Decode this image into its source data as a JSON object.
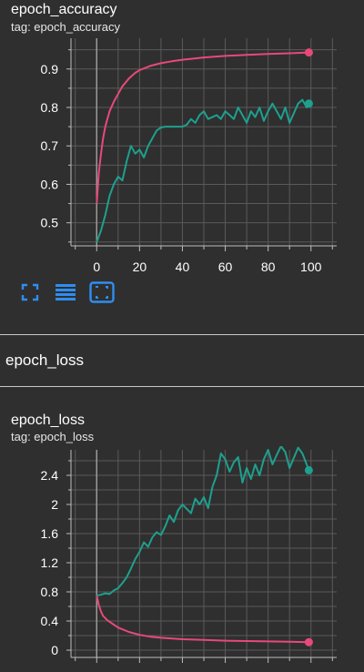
{
  "cards": [
    {
      "title": "epoch_accuracy",
      "tag": "tag: epoch_accuracy"
    },
    {
      "title": "epoch_loss",
      "tag": "tag: epoch_loss"
    }
  ],
  "section": {
    "title": "epoch_loss"
  },
  "toolbar": [
    {
      "icon": "fullscreen-icon"
    },
    {
      "icon": "list-lines-icon"
    },
    {
      "icon": "fit-domain-icon"
    }
  ],
  "colors": {
    "background": "#2f2f2f",
    "grid": "#5a5a5a",
    "axis": "#bdbdbd",
    "series_pink": "#e8497a",
    "series_teal": "#1ea08e",
    "toolbar_icon": "#2e8ef0"
  },
  "chart_data": [
    {
      "type": "line",
      "title": "epoch_accuracy",
      "xlim": [
        -12,
        112
      ],
      "ylim": [
        0.44,
        0.98
      ],
      "xticks": [
        0,
        20,
        40,
        60,
        80,
        100
      ],
      "yticks": [
        0.5,
        0.6,
        0.7,
        0.8,
        0.9
      ],
      "ytick_labels": [
        "0.5",
        "0.6",
        "0.7",
        "0.8",
        "0.9"
      ],
      "grid": true,
      "series": [
        {
          "color": "#e8497a",
          "x": [
            0,
            1,
            2,
            3,
            4,
            5,
            6,
            8,
            10,
            12,
            15,
            18,
            20,
            25,
            30,
            35,
            40,
            50,
            60,
            70,
            80,
            90,
            99
          ],
          "y": [
            0.55,
            0.63,
            0.68,
            0.72,
            0.75,
            0.77,
            0.79,
            0.815,
            0.835,
            0.855,
            0.875,
            0.89,
            0.897,
            0.908,
            0.915,
            0.92,
            0.924,
            0.93,
            0.934,
            0.937,
            0.939,
            0.941,
            0.943
          ]
        },
        {
          "color": "#1ea08e",
          "x": [
            0,
            2,
            4,
            6,
            8,
            10,
            12,
            14,
            16,
            18,
            20,
            22,
            24,
            26,
            28,
            30,
            32,
            34,
            36,
            38,
            40,
            42,
            44,
            46,
            48,
            50,
            52,
            54,
            56,
            58,
            60,
            62,
            64,
            66,
            68,
            70,
            72,
            74,
            76,
            78,
            80,
            82,
            84,
            86,
            88,
            90,
            92,
            94,
            96,
            98,
            99
          ],
          "y": [
            0.45,
            0.48,
            0.52,
            0.57,
            0.6,
            0.62,
            0.61,
            0.66,
            0.7,
            0.68,
            0.69,
            0.67,
            0.7,
            0.72,
            0.74,
            0.748,
            0.75,
            0.75,
            0.75,
            0.75,
            0.75,
            0.755,
            0.77,
            0.76,
            0.78,
            0.79,
            0.77,
            0.775,
            0.78,
            0.77,
            0.79,
            0.78,
            0.77,
            0.8,
            0.78,
            0.76,
            0.79,
            0.775,
            0.8,
            0.765,
            0.79,
            0.81,
            0.79,
            0.77,
            0.8,
            0.76,
            0.785,
            0.81,
            0.82,
            0.8,
            0.81
          ]
        }
      ]
    },
    {
      "type": "line",
      "title": "epoch_loss",
      "xlim": [
        -12,
        112
      ],
      "ylim": [
        -0.1,
        2.75
      ],
      "xticks": [
        0,
        20,
        40,
        60,
        80,
        100
      ],
      "yticks": [
        0,
        0.4,
        0.8,
        1.2,
        1.6,
        2,
        2.4
      ],
      "ytick_labels": [
        "0",
        "0.4",
        "0.8",
        "1.2",
        "1.6",
        "2",
        "2.4"
      ],
      "grid": true,
      "series": [
        {
          "color": "#e8497a",
          "x": [
            0,
            1,
            2,
            3,
            5,
            8,
            10,
            15,
            20,
            25,
            30,
            40,
            50,
            60,
            70,
            80,
            90,
            99
          ],
          "y": [
            0.75,
            0.62,
            0.53,
            0.47,
            0.41,
            0.35,
            0.31,
            0.25,
            0.21,
            0.185,
            0.17,
            0.15,
            0.14,
            0.13,
            0.125,
            0.12,
            0.115,
            0.11
          ]
        },
        {
          "color": "#1ea08e",
          "x": [
            0,
            2,
            4,
            6,
            8,
            10,
            12,
            14,
            16,
            18,
            20,
            22,
            24,
            26,
            28,
            30,
            32,
            34,
            36,
            38,
            40,
            42,
            44,
            46,
            48,
            50,
            52,
            54,
            56,
            58,
            60,
            62,
            64,
            66,
            68,
            70,
            72,
            74,
            76,
            78,
            80,
            82,
            84,
            86,
            88,
            90,
            92,
            94,
            96,
            98,
            99
          ],
          "y": [
            0.75,
            0.76,
            0.78,
            0.77,
            0.82,
            0.85,
            0.92,
            1.0,
            1.12,
            1.25,
            1.35,
            1.48,
            1.42,
            1.55,
            1.62,
            1.58,
            1.7,
            1.85,
            1.76,
            1.92,
            2.0,
            1.94,
            1.88,
            2.08,
            2.0,
            2.1,
            1.95,
            2.24,
            2.4,
            2.7,
            2.62,
            2.45,
            2.58,
            2.65,
            2.3,
            2.5,
            2.35,
            2.55,
            2.4,
            2.62,
            2.75,
            2.55,
            2.68,
            2.8,
            2.72,
            2.5,
            2.64,
            2.78,
            2.7,
            2.55,
            2.47
          ]
        }
      ]
    }
  ]
}
